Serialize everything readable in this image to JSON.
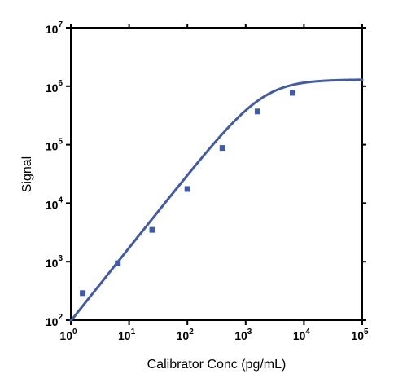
{
  "chart_data": {
    "type": "scatter",
    "xlabel": "Calibrator Conc (pg/mL)",
    "ylabel": "Signal",
    "x_scale": "log",
    "y_scale": "log",
    "xlim": [
      1,
      100000
    ],
    "ylim": [
      100,
      10000000
    ],
    "x_ticks": [
      {
        "base": "10",
        "exp": "0"
      },
      {
        "base": "10",
        "exp": "1"
      },
      {
        "base": "10",
        "exp": "2"
      },
      {
        "base": "10",
        "exp": "3"
      },
      {
        "base": "10",
        "exp": "4"
      },
      {
        "base": "10",
        "exp": "5"
      }
    ],
    "y_ticks": [
      {
        "base": "10",
        "exp": "2"
      },
      {
        "base": "10",
        "exp": "3"
      },
      {
        "base": "10",
        "exp": "4"
      },
      {
        "base": "10",
        "exp": "5"
      },
      {
        "base": "10",
        "exp": "6"
      },
      {
        "base": "10",
        "exp": "7"
      }
    ],
    "points": [
      {
        "x": 1.6,
        "y": 290
      },
      {
        "x": 6.4,
        "y": 940
      },
      {
        "x": 25,
        "y": 3500
      },
      {
        "x": 100,
        "y": 17500
      },
      {
        "x": 400,
        "y": 88000
      },
      {
        "x": 1600,
        "y": 370000
      },
      {
        "x": 6400,
        "y": 770000
      }
    ],
    "fit_curve": {
      "type": "4PL",
      "bottom": 0,
      "top": 1300000,
      "ec50": 2000,
      "hill": 1.25
    },
    "grid": false,
    "legend": "none",
    "colors": {
      "series": "#3f5ba9",
      "axis": "#000000"
    }
  }
}
